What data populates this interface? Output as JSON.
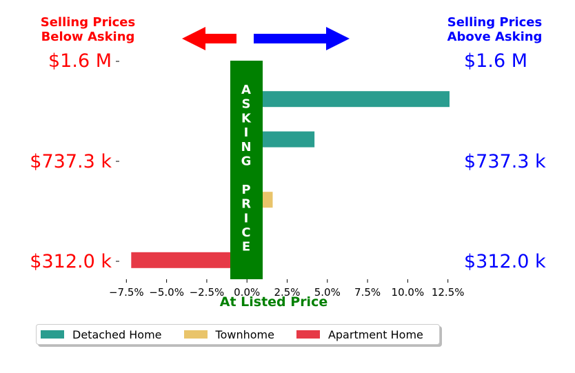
{
  "header_left": {
    "line1": "Selling Prices",
    "line2": "Below Asking",
    "color": "#ff0000"
  },
  "header_right": {
    "line1": "Selling Prices",
    "line2": "Above Asking",
    "color": "#0000ff"
  },
  "price_labels": [
    "$1.6 M",
    "$737.3 k",
    "$312.0 k"
  ],
  "center_band_text": "ASKING PRICE",
  "chart_data": {
    "type": "bar",
    "orientation": "horizontal",
    "xlabel": "At Listed Price",
    "xlim": [
      -8.5,
      13.2
    ],
    "xticks": [
      -7.5,
      -5.0,
      -2.5,
      0.0,
      2.5,
      5.0,
      7.5,
      10.0,
      12.5
    ],
    "xtick_labels": [
      "−7.5%",
      "−5.0%",
      "−2.5%",
      "0.0%",
      "2.5%",
      "5.0%",
      "7.5%",
      "10.0%",
      "12.5%"
    ],
    "bars": [
      {
        "series": "Detached Home",
        "value": 0.6
      },
      {
        "series": "Detached Home",
        "value": 12.6
      },
      {
        "series": "Detached Home",
        "value": 0.6
      },
      {
        "series": "Detached Home",
        "value": 4.2
      },
      {
        "series": "Detached Home",
        "value": 0.6
      },
      {
        "series": "Detached Home",
        "value": 0.6
      },
      {
        "series": "Townhome",
        "value": 1.6
      },
      {
        "series": "Townhome",
        "value": 0.6
      },
      {
        "series": "Townhome",
        "value": 0.6
      },
      {
        "series": "Apartment Home",
        "value": -7.2
      }
    ],
    "legend": [
      {
        "name": "Detached Home",
        "color": "#2a9d8f"
      },
      {
        "name": "Townhome",
        "color": "#e9c46a"
      },
      {
        "name": "Apartment Home",
        "color": "#e63946"
      }
    ],
    "legend_placement": "bottom",
    "band_color": "#008000",
    "grid": false
  }
}
